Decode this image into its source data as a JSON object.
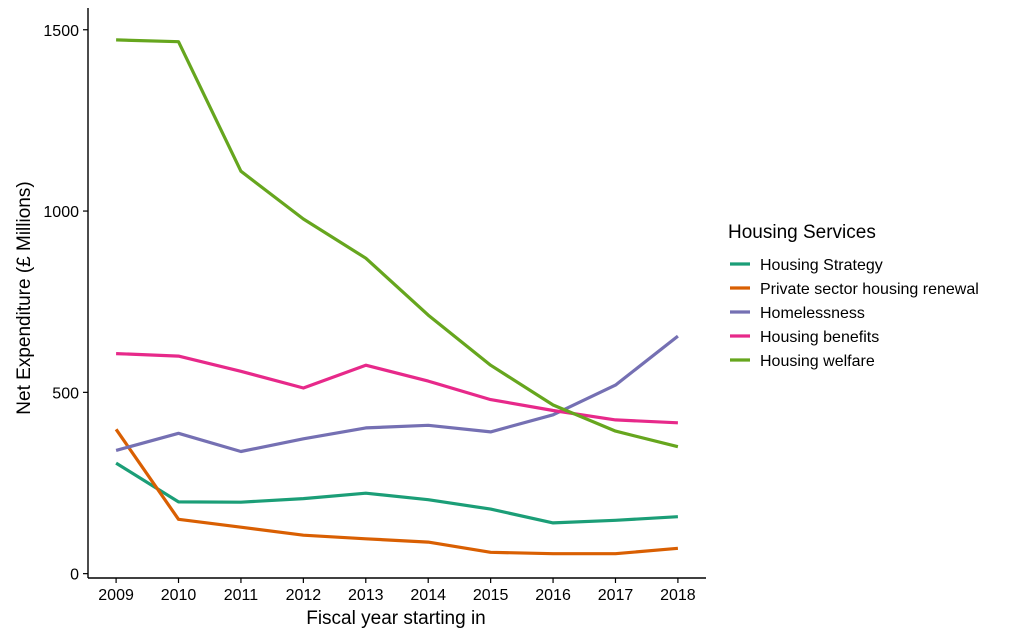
{
  "chart_data": {
    "type": "line",
    "title": "",
    "xlabel": "Fiscal year starting in",
    "ylabel": "Net Expenditure (£ Millions)",
    "x": [
      2009,
      2010,
      2011,
      2012,
      2013,
      2014,
      2015,
      2016,
      2017,
      2018
    ],
    "x_ticks": [
      "2009",
      "2010",
      "2011",
      "2012",
      "2013",
      "2014",
      "2015",
      "2016",
      "2017",
      "2018"
    ],
    "y_ticks": [
      "0",
      "500",
      "1000",
      "1500"
    ],
    "y_tick_values": [
      0,
      500,
      1000,
      1500
    ],
    "ylim": [
      -12,
      1560
    ],
    "xlim": [
      2008.55,
      2018.45
    ],
    "grid": false,
    "legend": {
      "title": "Housing Services",
      "placement": "right"
    },
    "series": [
      {
        "name": "Housing Strategy",
        "color": "#1b9e77",
        "values": [
          305,
          198,
          197,
          207,
          222,
          204,
          178,
          140,
          147,
          157
        ]
      },
      {
        "name": "Private sector housing renewal",
        "color": "#d95f02",
        "values": [
          398,
          150,
          128,
          106,
          96,
          87,
          59,
          55,
          55,
          70
        ]
      },
      {
        "name": "Homelessness",
        "color": "#7570b3",
        "values": [
          340,
          387,
          337,
          372,
          402,
          409,
          391,
          438,
          520,
          655
        ]
      },
      {
        "name": "Housing benefits",
        "color": "#e7298a",
        "values": [
          607,
          600,
          558,
          512,
          575,
          531,
          480,
          450,
          424,
          416
        ]
      },
      {
        "name": "Housing welfare",
        "color": "#66a61e",
        "values": [
          1472,
          1467,
          1110,
          978,
          870,
          713,
          575,
          465,
          393,
          350
        ]
      }
    ]
  }
}
